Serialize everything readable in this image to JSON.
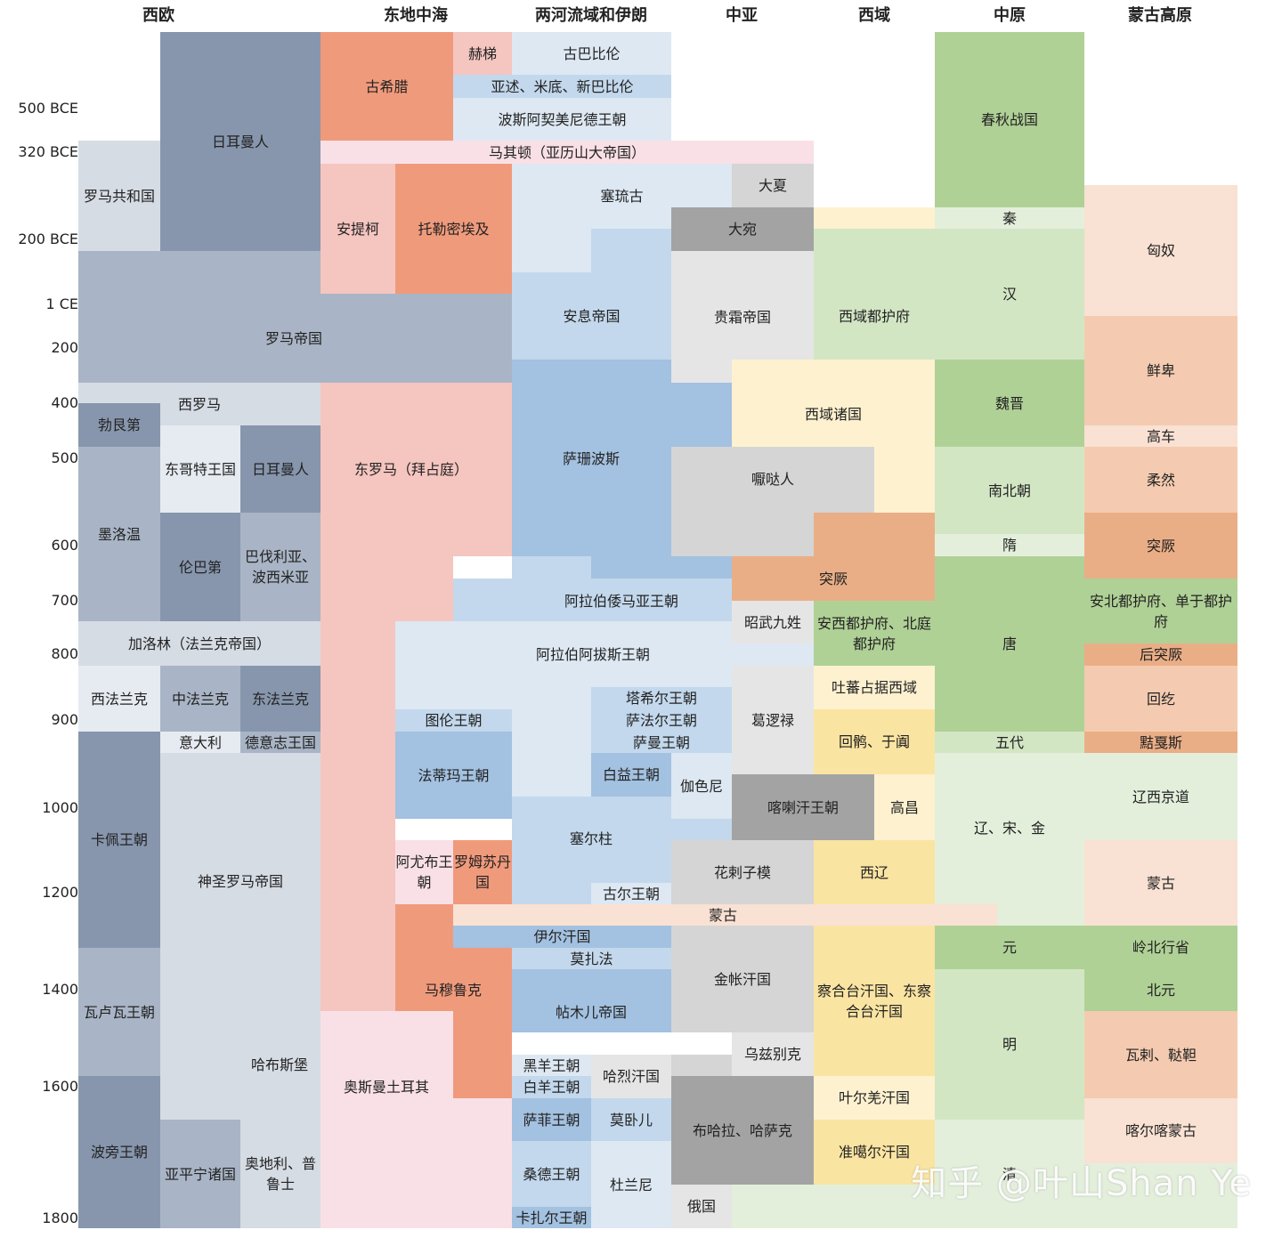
{
  "colors": {
    "west_dark": "#8796ad",
    "west_mid": "#a9b5c6",
    "west_light": "#d6dce4",
    "west_pale": "#e6ebf1",
    "med_salmon": "#f09a7c",
    "med_pink": "#f5c5c0",
    "med_pale": "#f9e0e6",
    "iran_pale": "#dde8f3",
    "iran_light": "#c3d8ec",
    "iran_mid": "#a3c1e0",
    "ca_gray": "#a3a3a3",
    "ca_light": "#d5d5d5",
    "ca_pale": "#e5e5e5",
    "xy_pale": "#fdf1cf",
    "xy_yellow": "#fae4a2",
    "green_dark": "#b0d196",
    "green_light": "#d3e6c4",
    "green_pale": "#e3efdb",
    "mg_pale": "#f9e1d3",
    "mg_light": "#f4cbb0",
    "mg_dark": "#eaae86"
  },
  "headers": [
    "西欧",
    "东地中海",
    "两河流域和伊朗",
    "中亚",
    "西域",
    "中原",
    "蒙古高原"
  ],
  "years": [
    "500 BCE",
    "320 BCE",
    "200 BCE",
    "1 CE",
    "200",
    "400",
    "500",
    "600",
    "700",
    "800",
    "900",
    "1000",
    "1200",
    "1400",
    "1600",
    "1800"
  ],
  "polities": [
    "日耳曼人",
    "罗马共和国",
    "罗马帝国",
    "西罗马",
    "勃艮第",
    "东哥特王国",
    "日耳曼人",
    "墨洛温",
    "伦巴第",
    "巴伐利亚、波西米亚",
    "加洛林（法兰克帝国）",
    "西法兰克",
    "中法兰克",
    "东法兰克",
    "意大利",
    "德意志王国",
    "卡佩王朝",
    "神圣罗马帝国",
    "瓦卢瓦王朝",
    "哈布斯堡",
    "波旁王朝",
    "亚平宁诸国",
    "奥地利、普鲁士",
    "古希腊",
    "赫梯",
    "马其顿（亚历山大帝国）",
    "安提柯",
    "托勒密埃及",
    "东罗马（拜占庭）",
    "阿尤布王朝",
    "罗姆苏丹国",
    "马穆鲁克",
    "奥斯曼土耳其",
    "古巴比伦",
    "亚述、米底、新巴比伦",
    "波斯阿契美尼德王朝",
    "塞琉古",
    "安息帝国",
    "萨珊波斯",
    "阿拉伯倭马亚王朝",
    "阿拉伯阿拔斯王朝",
    "图伦王朝",
    "塔希尔王朝",
    "萨法尔王朝",
    "萨曼王朝",
    "法蒂玛王朝",
    "白益王朝",
    "伽色尼",
    "塞尔柱",
    "古尔王朝",
    "伊尔汗国",
    "莫扎法",
    "帖木儿帝国",
    "黑羊王朝",
    "白羊王朝",
    "哈烈汗国",
    "萨菲王朝",
    "莫卧儿",
    "桑德王朝",
    "杜兰尼",
    "卡扎尔王朝",
    "大夏",
    "大宛",
    "贵霜帝国",
    "嚈哒人",
    "昭武九姓",
    "葛逻禄",
    "喀喇汗王朝",
    "花剌子模",
    "金帐汗国",
    "乌兹别克",
    "布哈拉、哈萨克",
    "俄国",
    "西域诸国",
    "西域都护府",
    "西域诸国",
    "突厥",
    "安西都护府、北庭都护府",
    "吐蕃占据西域",
    "回鹘、于阗",
    "高昌",
    "西辽",
    "察合台汗国、东察合台汗国",
    "叶尔羌汗国",
    "准噶尔汗国",
    "春秋战国",
    "秦",
    "汉",
    "魏晋",
    "南北朝",
    "隋",
    "唐",
    "五代",
    "辽、宋、金",
    "元",
    "明",
    "清",
    "匈奴",
    "鲜卑",
    "高车",
    "柔然",
    "突厥",
    "安北都护府、单于都护府",
    "后突厥",
    "回纥",
    "黠戛斯",
    "辽西京道",
    "蒙古",
    "岭北行省",
    "北元",
    "瓦剌、鞑靼",
    "喀尔喀蒙古",
    "蒙古"
  ],
  "watermark": "知乎 @叶山Shan Ye"
}
